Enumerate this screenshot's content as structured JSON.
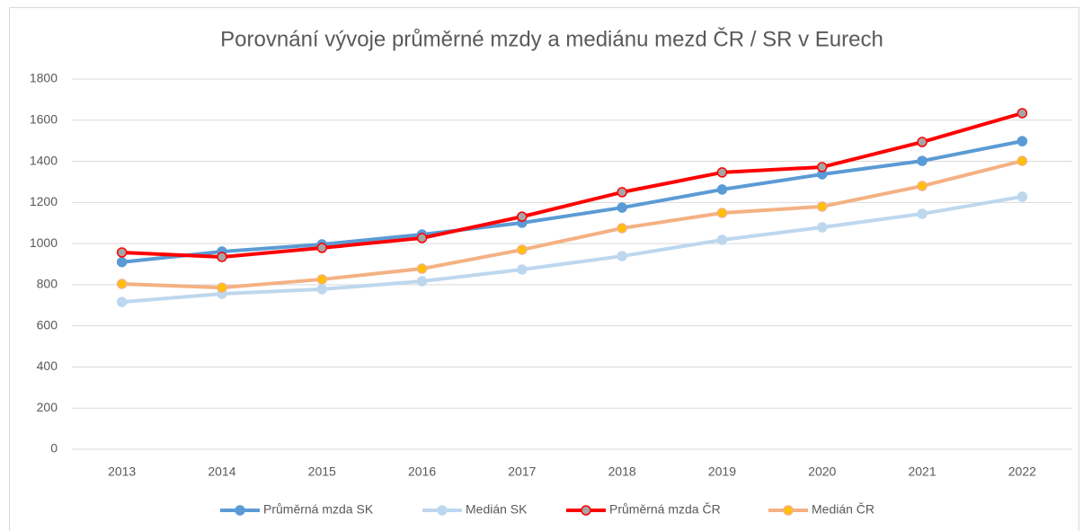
{
  "chart_data": {
    "type": "line",
    "title": "Porovnání vývoje průměrné mzdy a mediánu mezd ČR / SR v Eurech",
    "categories": [
      "2013",
      "2014",
      "2015",
      "2016",
      "2017",
      "2018",
      "2019",
      "2020",
      "2021",
      "2022"
    ],
    "series": [
      {
        "name": "Průměrná mzda SK",
        "color": "#5b9bd5",
        "marker_color": "#5b9bd5",
        "values": [
          910,
          961,
          996,
          1044,
          1101,
          1175,
          1263,
          1337,
          1402,
          1498
        ]
      },
      {
        "name": "Medián SK",
        "color": "#bdd7ee",
        "marker_color": "#bdd7ee",
        "values": [
          716,
          756,
          778,
          817,
          874,
          939,
          1018,
          1079,
          1145,
          1228
        ]
      },
      {
        "name": "Průměrná mzda ČR",
        "color": "#ff0000",
        "marker_color": "#a5a5a5",
        "values": [
          957,
          935,
          979,
          1027,
          1131,
          1250,
          1346,
          1372,
          1494,
          1634
        ]
      },
      {
        "name": "Medián ČR",
        "color": "#f4b183",
        "marker_color": "#ffc000",
        "values": [
          804,
          786,
          826,
          878,
          970,
          1075,
          1149,
          1180,
          1280,
          1402
        ]
      }
    ],
    "ylim": [
      0,
      1800
    ],
    "yticks": [
      0,
      200,
      400,
      600,
      800,
      1000,
      1200,
      1400,
      1600,
      1800
    ],
    "grid": true,
    "legend": "bottom"
  }
}
